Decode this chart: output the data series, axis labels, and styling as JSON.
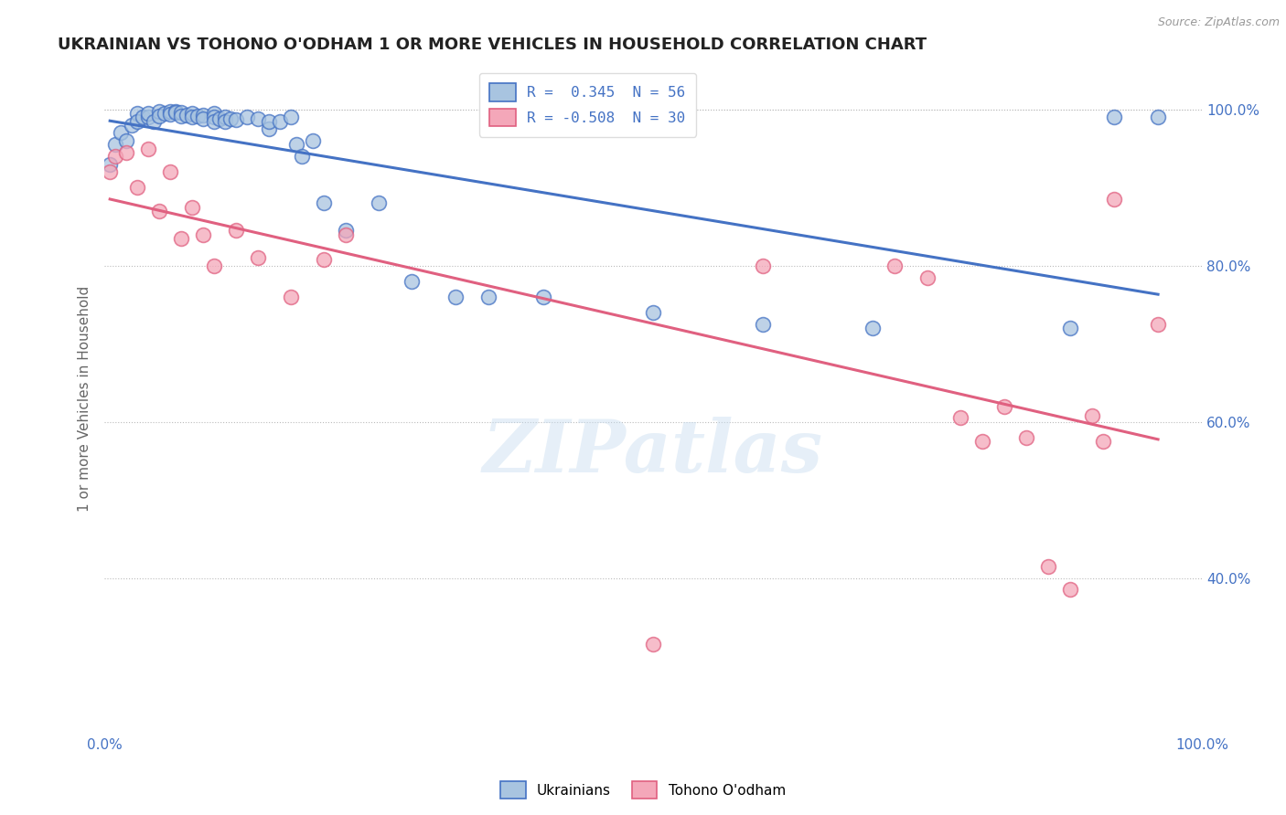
{
  "title": "UKRAINIAN VS TOHONO O'ODHAM 1 OR MORE VEHICLES IN HOUSEHOLD CORRELATION CHART",
  "source": "Source: ZipAtlas.com",
  "ylabel": "1 or more Vehicles in Household",
  "xlim": [
    0.0,
    1.0
  ],
  "ylim": [
    0.2,
    1.06
  ],
  "yticks": [
    0.4,
    0.6,
    0.8,
    1.0
  ],
  "ytick_labels": [
    "40.0%",
    "60.0%",
    "80.0%",
    "100.0%"
  ],
  "xticks": [
    0.0,
    1.0
  ],
  "xtick_labels": [
    "0.0%",
    "100.0%"
  ],
  "blue_R": 0.345,
  "blue_N": 56,
  "pink_R": -0.508,
  "pink_N": 30,
  "blue_color": "#a8c4e0",
  "pink_color": "#f4a7b9",
  "blue_line_color": "#4472c4",
  "pink_line_color": "#e06080",
  "legend_blue_label": "Ukrainians",
  "legend_pink_label": "Tohono O'odham",
  "watermark": "ZIPatlas",
  "background_color": "#ffffff",
  "title_fontsize": 13,
  "blue_scatter_x": [
    0.005,
    0.01,
    0.015,
    0.02,
    0.025,
    0.03,
    0.03,
    0.035,
    0.04,
    0.04,
    0.045,
    0.05,
    0.05,
    0.055,
    0.06,
    0.06,
    0.065,
    0.065,
    0.07,
    0.07,
    0.075,
    0.08,
    0.08,
    0.085,
    0.09,
    0.09,
    0.1,
    0.1,
    0.1,
    0.105,
    0.11,
    0.11,
    0.115,
    0.12,
    0.13,
    0.14,
    0.15,
    0.15,
    0.16,
    0.17,
    0.175,
    0.18,
    0.19,
    0.2,
    0.22,
    0.25,
    0.28,
    0.32,
    0.35,
    0.4,
    0.5,
    0.6,
    0.7,
    0.88,
    0.92,
    0.96
  ],
  "blue_scatter_y": [
    0.93,
    0.955,
    0.97,
    0.96,
    0.98,
    0.995,
    0.985,
    0.99,
    0.99,
    0.995,
    0.985,
    0.998,
    0.992,
    0.995,
    0.998,
    0.994,
    0.998,
    0.996,
    0.996,
    0.992,
    0.993,
    0.995,
    0.99,
    0.992,
    0.993,
    0.988,
    0.995,
    0.99,
    0.985,
    0.988,
    0.99,
    0.985,
    0.988,
    0.987,
    0.99,
    0.988,
    0.975,
    0.985,
    0.985,
    0.99,
    0.955,
    0.94,
    0.96,
    0.88,
    0.845,
    0.88,
    0.78,
    0.76,
    0.76,
    0.76,
    0.74,
    0.725,
    0.72,
    0.72,
    0.99,
    0.99
  ],
  "pink_scatter_x": [
    0.005,
    0.01,
    0.02,
    0.03,
    0.04,
    0.05,
    0.06,
    0.07,
    0.08,
    0.09,
    0.1,
    0.12,
    0.14,
    0.17,
    0.2,
    0.22,
    0.5,
    0.6,
    0.72,
    0.75,
    0.78,
    0.8,
    0.82,
    0.84,
    0.86,
    0.88,
    0.9,
    0.91,
    0.92,
    0.96
  ],
  "pink_scatter_y": [
    0.92,
    0.94,
    0.945,
    0.9,
    0.95,
    0.87,
    0.92,
    0.835,
    0.875,
    0.84,
    0.8,
    0.845,
    0.81,
    0.76,
    0.808,
    0.84,
    0.315,
    0.8,
    0.8,
    0.785,
    0.605,
    0.575,
    0.62,
    0.58,
    0.415,
    0.385,
    0.608,
    0.575,
    0.885,
    0.725
  ]
}
